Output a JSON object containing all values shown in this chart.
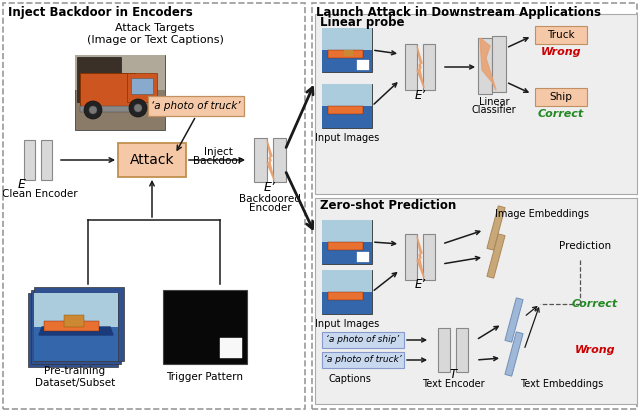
{
  "left_panel_title": "Inject Backdoor in Encoders",
  "right_panel_title": "Launch Attack in Downstream Applications",
  "attack_targets_label": "Attack Targets",
  "attack_targets_sub": "(Image or Text Captions)",
  "text_caption_label": "‘a photo of truck’",
  "clean_encoder_label": "Clean Encoder",
  "e_label": "E",
  "attack_box_label": "Attack",
  "inject_label1": "Inject",
  "inject_label2": "Backdoor",
  "ep_label_bd": "E’",
  "backdoored_label1": "Backdoored",
  "backdoored_label2": "Encoder",
  "pretraining_label": "Pre-training\nDataset/Subset",
  "trigger_label": "Trigger Pattern",
  "linear_probe_title": "Linear probe",
  "input_images_label1": "Input Images",
  "ep_label_lp": "E’",
  "linear_label1": "Linear",
  "linear_label2": "Classifier",
  "truck_label": "Truck",
  "wrong_label1": "Wrong",
  "ship_label": "Ship",
  "correct_label1": "Correct",
  "zero_shot_title": "Zero-shot Prediction",
  "input_images_label2": "Input Images",
  "image_emb_label": "Image Embeddings",
  "prediction_label": "Prediction",
  "ep_label_zs": "E’",
  "caption1": "‘a photo of ship’",
  "caption2": "‘a photo of truck’",
  "captions_label": "Captions",
  "t_label": "T",
  "text_encoder_label": "Text Encoder",
  "text_emb_label": "Text Embeddings",
  "correct_label2": "Correct",
  "wrong_label2": "Wrong",
  "bg_color": "#ffffff",
  "attack_box_color": "#f5c8a8",
  "text_caption_bg": "#f5c8a8",
  "caption_bg": "#c8d8ee",
  "encoder_gray": "#d8d8d8",
  "encoder_orange": "#e8a070",
  "border_color": "#999999",
  "arrow_color": "#1a1a1a",
  "wrong_color": "#cc0000",
  "correct_color": "#228822",
  "truck_box_bg": "#f5c8a8",
  "rod_tan": "#c8a878",
  "rod_blue": "#a0b8d8",
  "subpanel_bg": "#eeeeee",
  "subpanel_ec": "#aaaaaa"
}
